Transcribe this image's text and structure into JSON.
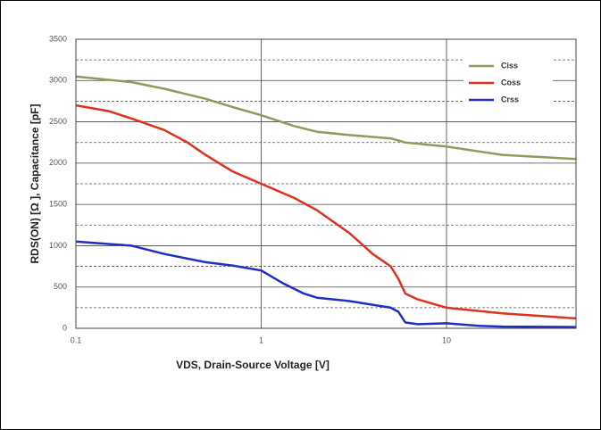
{
  "chart_data": {
    "type": "line",
    "x_label": "VDS, Drain-Source Voltage [V]",
    "y_label": "RDS(ON) [Ω ], Capacitance [pF]",
    "x_log": true,
    "xlim": [
      0.1,
      50
    ],
    "xticks": [
      0.1,
      1,
      10
    ],
    "ylim": [
      0,
      3500
    ],
    "yticks": [
      0,
      500,
      1000,
      1500,
      2000,
      2500,
      3000,
      3500
    ],
    "yminor": [
      250,
      750,
      1250,
      1750,
      2250,
      2750,
      3250
    ],
    "grid": true,
    "legend": "upper right",
    "series": [
      {
        "name": "Ciss",
        "color": "#8d9c5c",
        "x": [
          0.1,
          0.2,
          0.3,
          0.5,
          0.7,
          1,
          1.5,
          2,
          3,
          5,
          6,
          10,
          20,
          50
        ],
        "values": [
          3050,
          2980,
          2900,
          2780,
          2680,
          2580,
          2450,
          2380,
          2340,
          2300,
          2250,
          2200,
          2100,
          2050
        ]
      },
      {
        "name": "Coss",
        "color": "#e0311f",
        "x": [
          0.1,
          0.15,
          0.2,
          0.3,
          0.4,
          0.5,
          0.7,
          1,
          1.5,
          2,
          3,
          4,
          5,
          5.5,
          6,
          7,
          10,
          20,
          50
        ],
        "values": [
          2700,
          2630,
          2540,
          2400,
          2250,
          2100,
          1900,
          1750,
          1580,
          1430,
          1150,
          900,
          750,
          600,
          420,
          350,
          250,
          180,
          120
        ]
      },
      {
        "name": "Crss",
        "color": "#1f2fc2",
        "x": [
          0.1,
          0.2,
          0.3,
          0.5,
          0.7,
          1,
          1.3,
          1.7,
          2,
          3,
          5,
          5.5,
          6,
          7,
          10,
          15,
          20,
          50
        ],
        "values": [
          1050,
          1000,
          900,
          800,
          760,
          700,
          550,
          420,
          370,
          330,
          250,
          200,
          70,
          50,
          60,
          30,
          20,
          15
        ]
      }
    ]
  }
}
